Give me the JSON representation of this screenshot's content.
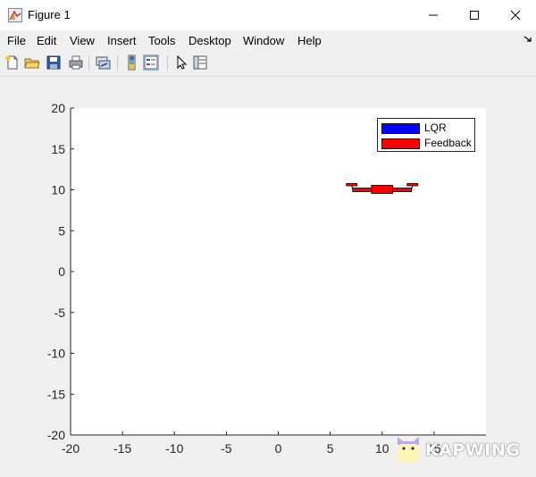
{
  "window": {
    "title": "Figure 1",
    "controls": [
      "minimize-icon",
      "maximize-icon",
      "close-icon"
    ]
  },
  "menu": {
    "items": [
      "File",
      "Edit",
      "View",
      "Insert",
      "Tools",
      "Desktop",
      "Window",
      "Help"
    ]
  },
  "toolbar": {
    "buttons": [
      {
        "icon": "new-figure-icon"
      },
      {
        "icon": "open-file-icon"
      },
      {
        "icon": "save-icon"
      },
      {
        "icon": "print-icon"
      },
      {
        "icon": "link-plot-icon"
      },
      {
        "icon": "insert-colorbar-icon"
      },
      {
        "icon": "insert-legend-icon",
        "pressed": true
      },
      {
        "icon": "edit-plot-arrow-icon"
      },
      {
        "icon": "property-inspector-icon"
      }
    ]
  },
  "chart_data": {
    "type": "line",
    "xlim": [
      -20,
      20
    ],
    "ylim": [
      -20,
      20
    ],
    "xticks": [
      -20,
      -15,
      -10,
      -5,
      0,
      5,
      10,
      15
    ],
    "yticks": [
      20,
      15,
      10,
      5,
      0,
      -5,
      -10,
      -15,
      -20
    ],
    "grid": false,
    "legend": {
      "location": "top-right",
      "entries": [
        {
          "label": "LQR",
          "color": "#0000ff"
        },
        {
          "label": "Feedback",
          "color": "#ff0000"
        }
      ]
    },
    "series": [
      {
        "name": "Feedback",
        "color": "#ff0000",
        "shape": "quadrotor",
        "center": [
          10,
          10
        ]
      }
    ]
  },
  "watermark": {
    "text": "KAPWING"
  }
}
